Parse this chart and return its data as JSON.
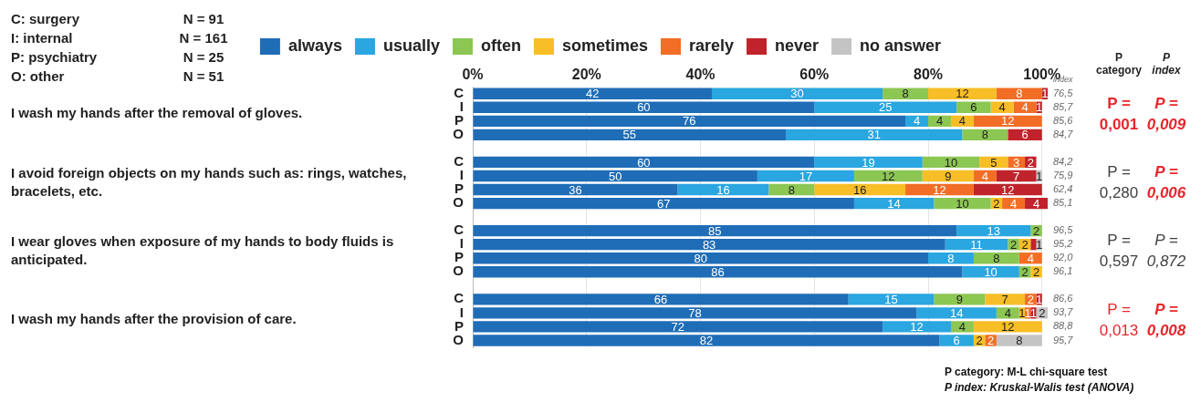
{
  "chart_data": {
    "type": "bar",
    "orientation": "horizontal",
    "stacked": true,
    "legend": "top",
    "grid": "x",
    "categories": [
      "C",
      "I",
      "P",
      "O",
      null,
      "C",
      "I",
      "P",
      "O",
      null,
      "C",
      "I",
      "P",
      "O",
      null,
      "C",
      "I",
      "P",
      "O"
    ],
    "xlim": [
      0,
      101
    ],
    "xticks": [
      {
        "value": 0,
        "label": "0%"
      },
      {
        "value": 20,
        "label": "20%"
      },
      {
        "value": 40,
        "label": "40%"
      },
      {
        "value": 60,
        "label": "60%"
      },
      {
        "value": 80,
        "label": "80%"
      },
      {
        "value": 100,
        "label": "100%"
      }
    ],
    "series": [
      {
        "name": "always",
        "color": "#1f6db7",
        "values": [
          42,
          60,
          76,
          55,
          null,
          60,
          50,
          36,
          67,
          null,
          85,
          83,
          80,
          86,
          null,
          66,
          78,
          72,
          82
        ],
        "value_labels": [
          "42",
          "60",
          "76",
          "55",
          null,
          "60",
          "50",
          "36",
          "67",
          null,
          "85",
          "83",
          "80",
          "86",
          null,
          "66",
          "78",
          "72",
          "82"
        ]
      },
      {
        "name": "usually",
        "color": "#2aa6e0",
        "values": [
          30,
          25,
          4,
          31,
          null,
          19,
          17,
          16,
          14,
          null,
          13,
          11,
          8,
          10,
          null,
          15,
          14,
          12,
          6
        ],
        "value_labels": [
          "30",
          "25",
          "4",
          "31",
          null,
          "19",
          "17",
          "16",
          "14",
          null,
          "13",
          "11",
          "8",
          "10",
          null,
          "15",
          "14",
          "12",
          "6"
        ]
      },
      {
        "name": "often",
        "color": "#8cc653",
        "values": [
          8,
          6,
          4,
          8,
          null,
          10,
          12,
          8,
          10,
          null,
          2,
          2,
          8,
          2,
          null,
          9,
          4,
          4,
          null
        ],
        "value_labels": [
          "8",
          "6",
          "4",
          "8",
          null,
          "10",
          "12",
          "8",
          "10",
          null,
          "2",
          "2",
          "8",
          "2",
          null,
          "9",
          "4",
          "4",
          null
        ]
      },
      {
        "name": "sometimes",
        "color": "#f7be27",
        "values": [
          12,
          4,
          4,
          null,
          null,
          5,
          9,
          16,
          2,
          null,
          null,
          2,
          null,
          2,
          null,
          7,
          1,
          12,
          2
        ],
        "value_labels": [
          "12",
          "4",
          "4",
          null,
          null,
          "5",
          "9",
          "16",
          "2",
          null,
          null,
          "2",
          null,
          "2",
          null,
          "7",
          "1",
          "12",
          "2"
        ]
      },
      {
        "name": "rarely",
        "color": "#f26d25",
        "values": [
          8,
          4,
          12,
          null,
          null,
          3,
          4,
          12,
          4,
          null,
          null,
          null,
          4,
          null,
          null,
          2,
          1,
          null,
          2
        ],
        "value_labels": [
          "8",
          "4",
          "12",
          null,
          null,
          "3",
          "4",
          "12",
          "4",
          null,
          null,
          null,
          "4",
          null,
          null,
          "2",
          "1",
          null,
          "2"
        ]
      },
      {
        "name": "never",
        "color": "#c0232b",
        "values": [
          1,
          1,
          null,
          6,
          null,
          2,
          7,
          12,
          4,
          null,
          null,
          1,
          null,
          null,
          null,
          1,
          1,
          null,
          null
        ],
        "value_labels": [
          "1",
          "1",
          null,
          "6",
          null,
          "2",
          "7",
          "12",
          "4",
          null,
          null,
          null,
          null,
          null,
          null,
          "1",
          "1",
          null,
          null
        ]
      },
      {
        "name": "no answer",
        "color": "#c4c4c4",
        "values": [
          null,
          null,
          null,
          null,
          null,
          null,
          1,
          null,
          null,
          null,
          null,
          1,
          null,
          null,
          null,
          null,
          2,
          null,
          8
        ],
        "value_labels": [
          null,
          null,
          null,
          null,
          null,
          null,
          "1",
          null,
          null,
          null,
          null,
          "1",
          null,
          null,
          null,
          null,
          "2",
          null,
          "8"
        ]
      }
    ],
    "annotations": [
      "C: surgery",
      "I: internal",
      "P: psychiatry",
      "O: other",
      "N = 91",
      "N = 161",
      "N = 25",
      "N = 51",
      "I wash my hands after the removal of gloves.",
      "I avoid foreign objects on my hands such as: rings, watches, bracelets, etc.",
      "I wear gloves when exposure of my hands to body fluids is anticipated.",
      "I wash my hands after the provision of care.",
      "index",
      "76,5",
      "85,7",
      "85,6",
      "84,7",
      "84,2",
      "75,9",
      "62,4",
      "85,1",
      "96,5",
      "95,2",
      "92,0",
      "96,1",
      "86,6",
      "93,7",
      "88,8",
      "95,7",
      "P category",
      "P index",
      "P =",
      "0,001",
      "P =",
      "0,009",
      "P =",
      "0,280",
      "P =",
      "0,006",
      "P =",
      "0,597",
      "P =",
      "0,872",
      "P =",
      "0,013",
      "P =",
      "0,008",
      "P category: M-L chi-square test",
      "P index: Kruskal-Walis test (ANOVA)"
    ]
  }
}
